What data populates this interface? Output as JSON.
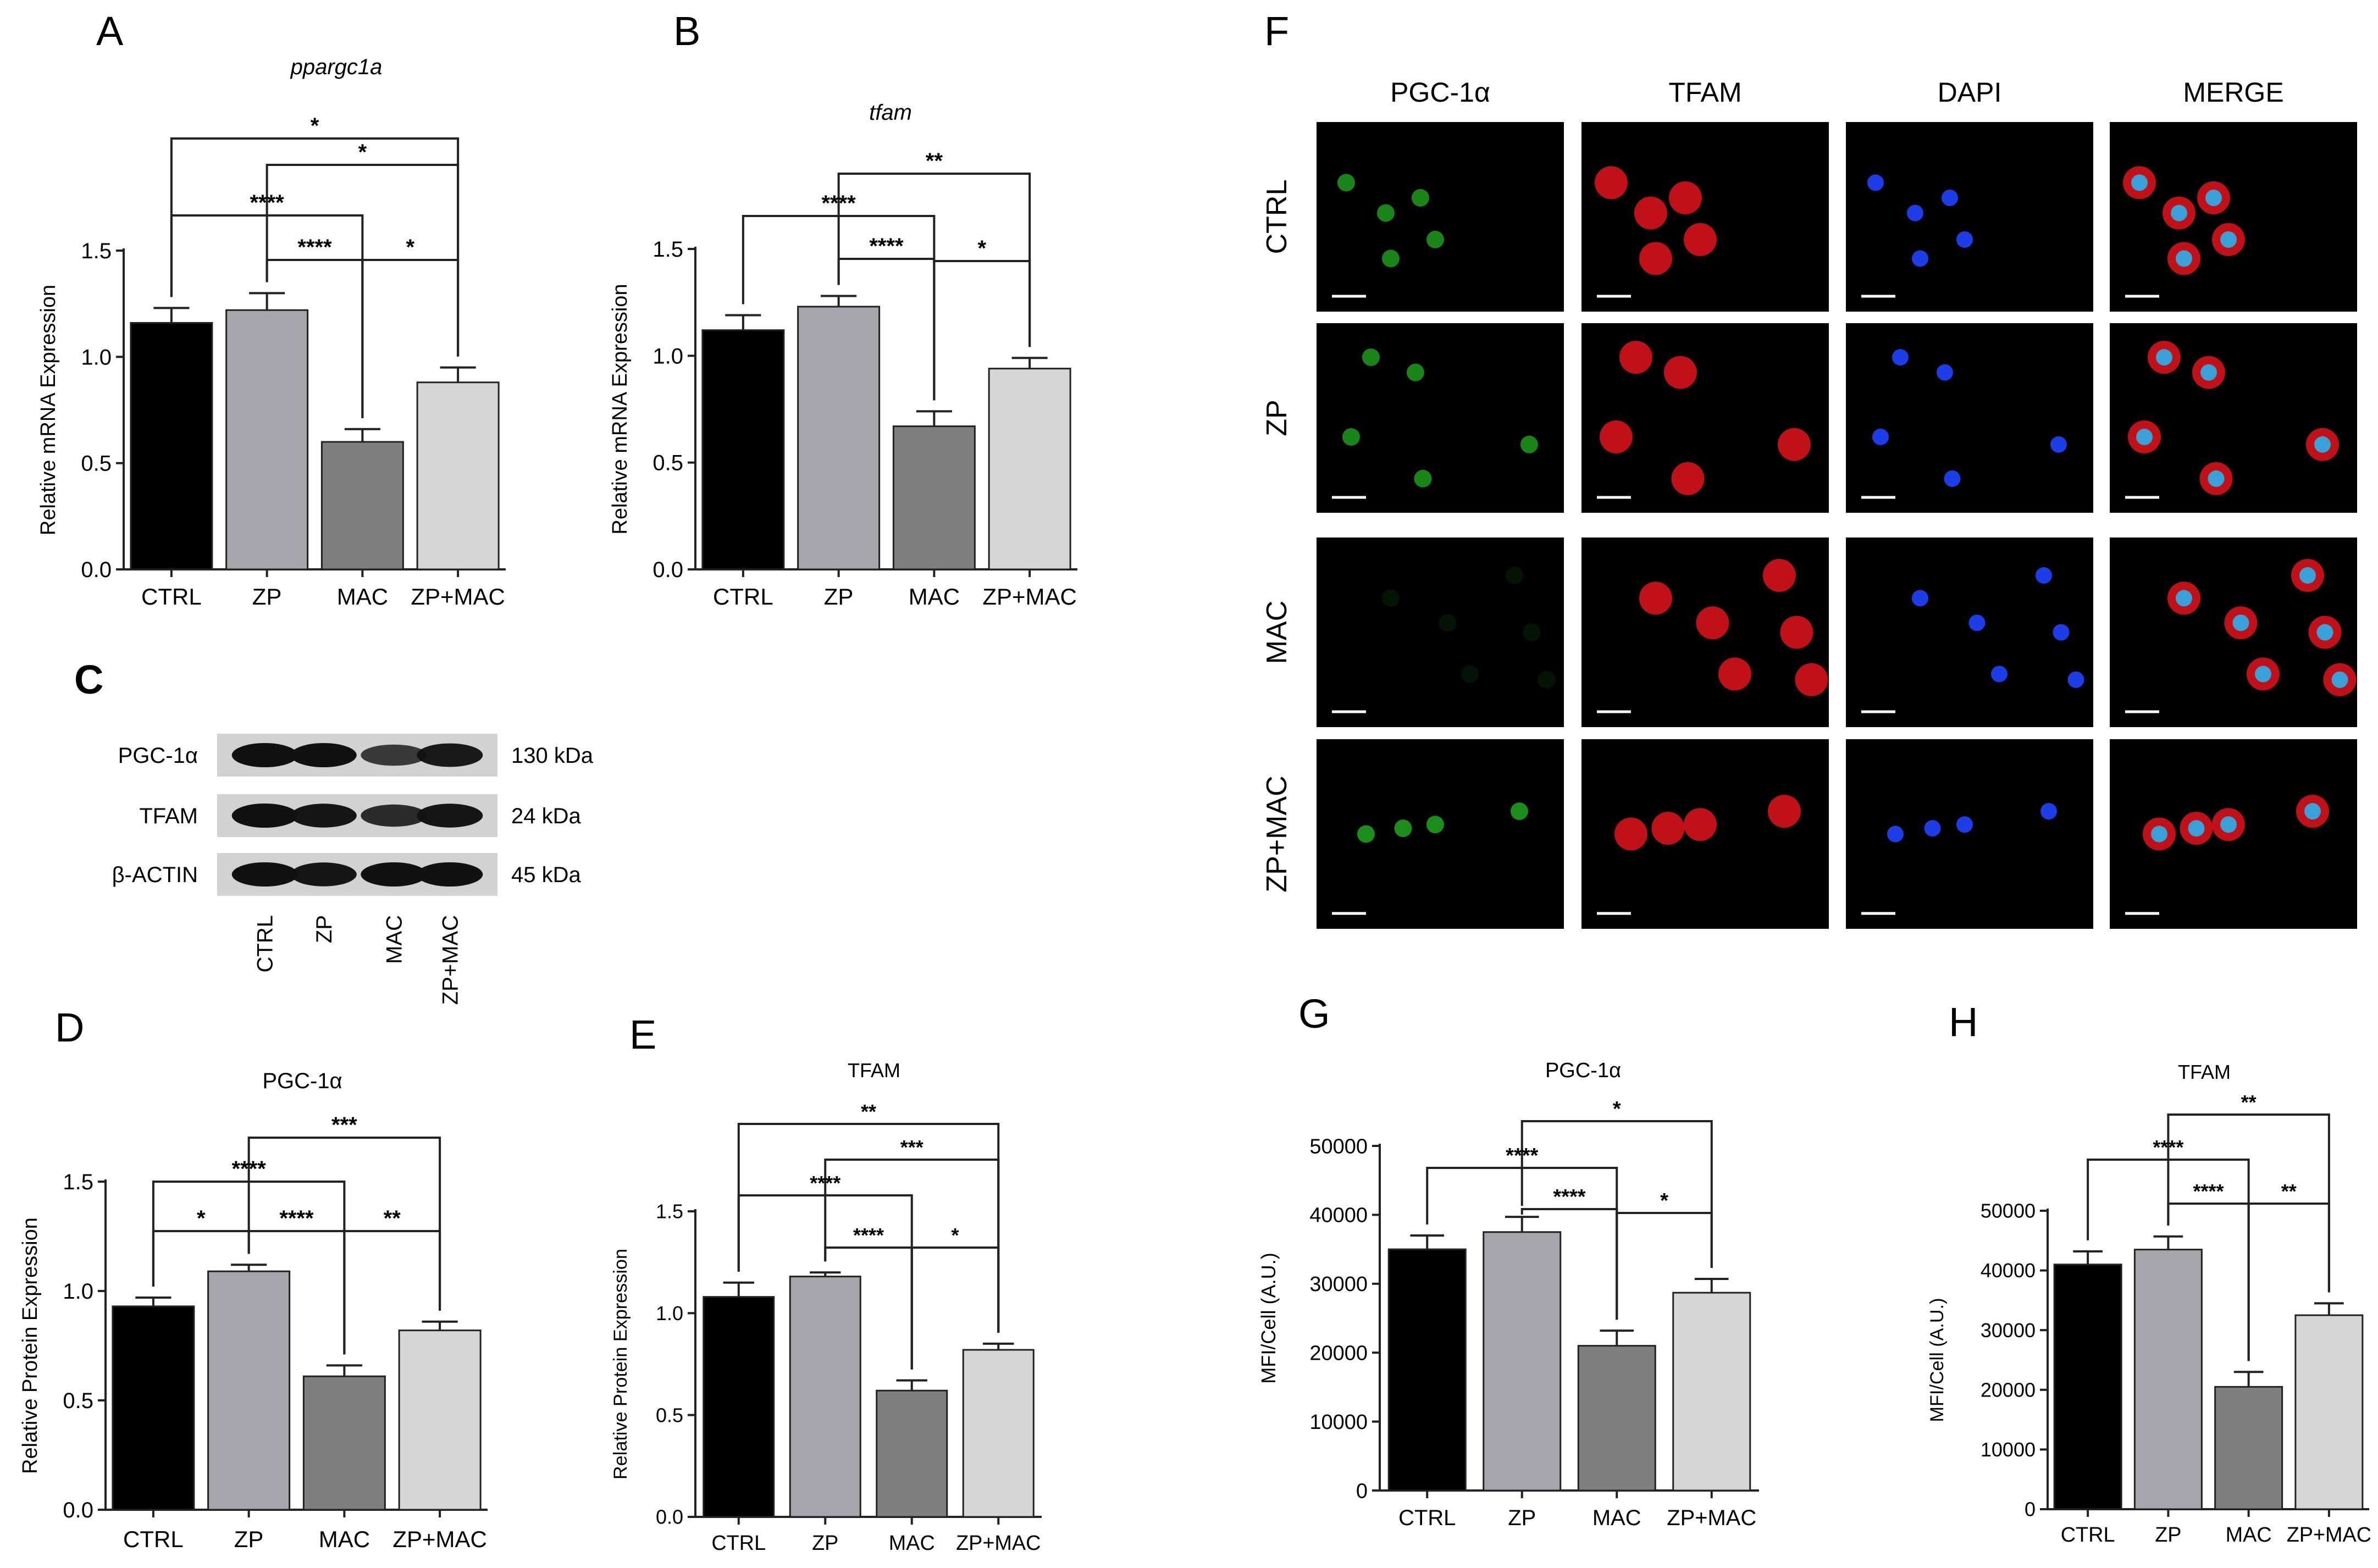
{
  "colors": {
    "CTRL": "#000000",
    "ZP": "#a5a5aa",
    "MAC": "#7f7f80",
    "ZP+MAC": "#d6d6d6",
    "microscopy_background": "#000000",
    "pgc1a_stain": "#1fa61f",
    "tfam_stain": "#e0141b",
    "dapi_stain": "#1d3de6"
  },
  "chart_data": [
    {
      "panel": "A",
      "type": "bar",
      "title": "ppargc1a",
      "ylabel": "Relative mRNA Expression",
      "xlabel": "",
      "categories": [
        "CTRL",
        "ZP",
        "MAC",
        "ZP+MAC"
      ],
      "values": [
        1.16,
        1.22,
        0.6,
        0.88
      ],
      "errors": [
        0.07,
        0.08,
        0.06,
        0.07
      ],
      "ylim": [
        0,
        1.5
      ],
      "yticks": [
        "0.0",
        "0.5",
        "1.0",
        "1.5"
      ],
      "grid": false,
      "significance": [
        {
          "from": "CTRL",
          "to": "ZP+MAC",
          "label": "*"
        },
        {
          "from": "ZP",
          "to": "ZP+MAC",
          "label": "*"
        },
        {
          "from": "CTRL",
          "to": "MAC",
          "label": "****"
        },
        {
          "from": "ZP",
          "to": "MAC",
          "label": "****"
        },
        {
          "from": "MAC",
          "to": "ZP+MAC",
          "label": "*"
        }
      ]
    },
    {
      "panel": "B",
      "type": "bar",
      "title": "tfam",
      "ylabel": "Relative mRNA Expression",
      "xlabel": "",
      "categories": [
        "CTRL",
        "ZP",
        "MAC",
        "ZP+MAC"
      ],
      "values": [
        1.12,
        1.23,
        0.67,
        0.94
      ],
      "errors": [
        0.07,
        0.05,
        0.07,
        0.05
      ],
      "ylim": [
        0,
        1.5
      ],
      "yticks": [
        "0.0",
        "0.5",
        "1.0",
        "1.5"
      ],
      "grid": false,
      "significance": [
        {
          "from": "ZP",
          "to": "ZP+MAC",
          "label": "**"
        },
        {
          "from": "CTRL",
          "to": "MAC",
          "label": "****"
        },
        {
          "from": "ZP",
          "to": "MAC",
          "label": "****"
        },
        {
          "from": "MAC",
          "to": "ZP+MAC",
          "label": "*"
        }
      ]
    },
    {
      "panel": "D",
      "type": "bar",
      "title": "PGC-1α",
      "ylabel": "Relative Protein Expression",
      "xlabel": "",
      "categories": [
        "CTRL",
        "ZP",
        "MAC",
        "ZP+MAC"
      ],
      "values": [
        0.93,
        1.09,
        0.61,
        0.82
      ],
      "errors": [
        0.04,
        0.03,
        0.05,
        0.04
      ],
      "ylim": [
        0,
        1.5
      ],
      "yticks": [
        "0.0",
        "0.5",
        "1.0",
        "1.5"
      ],
      "grid": false,
      "significance": [
        {
          "from": "ZP",
          "to": "ZP+MAC",
          "label": "***"
        },
        {
          "from": "CTRL",
          "to": "MAC",
          "label": "****"
        },
        {
          "from": "CTRL",
          "to": "ZP",
          "label": "*"
        },
        {
          "from": "ZP",
          "to": "MAC",
          "label": "****"
        },
        {
          "from": "MAC",
          "to": "ZP+MAC",
          "label": "**"
        }
      ]
    },
    {
      "panel": "E",
      "type": "bar",
      "title": "TFAM",
      "ylabel": "Relative Protein Expression",
      "xlabel": "",
      "categories": [
        "CTRL",
        "ZP",
        "MAC",
        "ZP+MAC"
      ],
      "values": [
        1.08,
        1.18,
        0.62,
        0.82
      ],
      "errors": [
        0.07,
        0.02,
        0.05,
        0.03
      ],
      "ylim": [
        0,
        1.5
      ],
      "yticks": [
        "0.0",
        "0.5",
        "1.0",
        "1.5"
      ],
      "grid": false,
      "significance": [
        {
          "from": "CTRL",
          "to": "ZP+MAC",
          "label": "**"
        },
        {
          "from": "ZP",
          "to": "ZP+MAC",
          "label": "***"
        },
        {
          "from": "CTRL",
          "to": "MAC",
          "label": "****"
        },
        {
          "from": "ZP",
          "to": "MAC",
          "label": "****"
        },
        {
          "from": "MAC",
          "to": "ZP+MAC",
          "label": "*"
        }
      ]
    },
    {
      "panel": "G",
      "type": "bar",
      "title": "PGC-1α",
      "ylabel": "MFI/Cell (A.U.)",
      "xlabel": "",
      "categories": [
        "CTRL",
        "ZP",
        "MAC",
        "ZP+MAC"
      ],
      "values": [
        35000,
        37500,
        21000,
        28700
      ],
      "errors": [
        2000,
        2200,
        2200,
        2000
      ],
      "ylim": [
        0,
        50000
      ],
      "yticks": [
        "0",
        "10000",
        "20000",
        "30000",
        "40000",
        "50000"
      ],
      "grid": false,
      "significance": [
        {
          "from": "ZP",
          "to": "ZP+MAC",
          "label": "*"
        },
        {
          "from": "CTRL",
          "to": "MAC",
          "label": "****"
        },
        {
          "from": "ZP",
          "to": "MAC",
          "label": "****"
        },
        {
          "from": "MAC",
          "to": "ZP+MAC",
          "label": "*"
        }
      ]
    },
    {
      "panel": "H",
      "type": "bar",
      "title": "TFAM",
      "ylabel": "MFI/Cell (A.U.)",
      "xlabel": "",
      "categories": [
        "CTRL",
        "ZP",
        "MAC",
        "ZP+MAC"
      ],
      "values": [
        41000,
        43500,
        20500,
        32500
      ],
      "errors": [
        2200,
        2200,
        2500,
        2000
      ],
      "ylim": [
        0,
        50000
      ],
      "yticks": [
        "0",
        "10000",
        "20000",
        "30000",
        "40000",
        "50000"
      ],
      "grid": false,
      "significance": [
        {
          "from": "ZP",
          "to": "ZP+MAC",
          "label": "**"
        },
        {
          "from": "CTRL",
          "to": "MAC",
          "label": "****"
        },
        {
          "from": "ZP",
          "to": "MAC",
          "label": "****"
        },
        {
          "from": "MAC",
          "to": "ZP+MAC",
          "label": "**"
        }
      ]
    }
  ],
  "western_blot": {
    "panel": "C",
    "rows": [
      {
        "protein": "PGC-1α",
        "size": "130 kDa"
      },
      {
        "protein": "TFAM",
        "size": "24 kDa"
      },
      {
        "protein": "β-ACTIN",
        "size": "45 kDa"
      }
    ],
    "lanes": [
      "CTRL",
      "ZP",
      "MAC",
      "ZP+MAC"
    ]
  },
  "microscopy": {
    "panel": "F",
    "channels": [
      "PGC-1α",
      "TFAM",
      "DAPI",
      "MERGE"
    ],
    "groups": [
      "CTRL",
      "ZP",
      "MAC",
      "ZP+MAC"
    ]
  }
}
